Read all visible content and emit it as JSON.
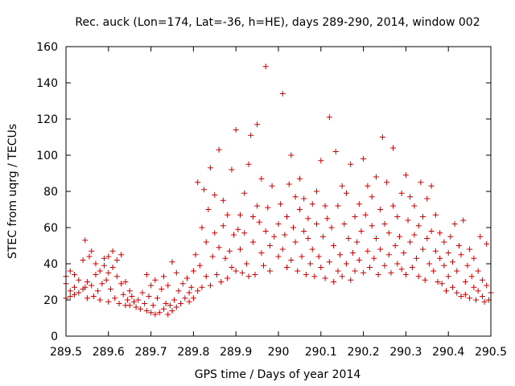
{
  "chart_data": {
    "type": "scatter",
    "title": "Rec. auck (Lon=174, Lat=-36, h=HE), days 289-290, 2014, window 002",
    "xlabel": "GPS time / Days of year 2014",
    "ylabel": "STEC from uqrg / TECUs",
    "xlim": [
      289.5,
      290.5
    ],
    "ylim": [
      0,
      160
    ],
    "xticks": [
      289.5,
      289.6,
      289.7,
      289.8,
      289.9,
      290.0,
      290.1,
      290.2,
      290.3,
      290.4,
      290.5
    ],
    "xtick_labels": [
      "289.5",
      "289.6",
      "289.7",
      "289.8",
      "289.9",
      "290",
      "290.1",
      "290.2",
      "290.3",
      "290.4",
      "290.5"
    ],
    "yticks": [
      0,
      20,
      40,
      60,
      80,
      100,
      120,
      140,
      160
    ],
    "ytick_labels": [
      "0",
      "20",
      "40",
      "60",
      "80",
      "100",
      "120",
      "140",
      "160"
    ],
    "grid": false,
    "legend": "none",
    "marker": "plus",
    "marker_color": "#cc0000",
    "series": [
      {
        "name": "STEC",
        "points": [
          [
            289.5,
            21
          ],
          [
            289.5,
            29
          ],
          [
            289.5,
            33
          ],
          [
            289.51,
            22
          ],
          [
            289.51,
            25
          ],
          [
            289.51,
            36
          ],
          [
            289.52,
            23
          ],
          [
            289.52,
            27
          ],
          [
            289.52,
            34
          ],
          [
            289.53,
            24
          ],
          [
            289.53,
            31
          ],
          [
            289.54,
            26
          ],
          [
            289.54,
            42
          ],
          [
            289.545,
            27
          ],
          [
            289.545,
            53
          ],
          [
            289.55,
            21
          ],
          [
            289.55,
            30
          ],
          [
            289.555,
            44
          ],
          [
            289.56,
            28
          ],
          [
            289.56,
            47
          ],
          [
            289.565,
            22
          ],
          [
            289.57,
            34
          ],
          [
            289.57,
            40
          ],
          [
            289.575,
            25
          ],
          [
            289.58,
            20
          ],
          [
            289.58,
            36
          ],
          [
            289.585,
            29
          ],
          [
            289.59,
            39
          ],
          [
            289.59,
            43
          ],
          [
            289.595,
            31
          ],
          [
            289.6,
            19
          ],
          [
            289.6,
            35
          ],
          [
            289.6,
            44
          ],
          [
            289.605,
            26
          ],
          [
            289.61,
            38
          ],
          [
            289.61,
            47
          ],
          [
            289.615,
            21
          ],
          [
            289.62,
            33
          ],
          [
            289.62,
            42
          ],
          [
            289.625,
            18
          ],
          [
            289.63,
            29
          ],
          [
            289.63,
            45
          ],
          [
            289.635,
            23
          ],
          [
            289.64,
            17
          ],
          [
            289.64,
            30
          ],
          [
            289.645,
            20
          ],
          [
            289.65,
            25
          ],
          [
            289.65,
            17
          ],
          [
            289.655,
            22
          ],
          [
            289.66,
            19
          ],
          [
            289.665,
            16
          ],
          [
            289.67,
            20
          ],
          [
            289.675,
            15
          ],
          [
            289.68,
            24
          ],
          [
            289.685,
            18
          ],
          [
            289.69,
            14
          ],
          [
            289.69,
            34
          ],
          [
            289.695,
            22
          ],
          [
            289.7,
            13
          ],
          [
            289.7,
            28
          ],
          [
            289.705,
            17
          ],
          [
            289.71,
            12
          ],
          [
            289.71,
            31
          ],
          [
            289.715,
            21
          ],
          [
            289.72,
            13
          ],
          [
            289.725,
            26
          ],
          [
            289.73,
            15
          ],
          [
            289.73,
            33
          ],
          [
            289.735,
            18
          ],
          [
            289.74,
            12
          ],
          [
            289.74,
            28
          ],
          [
            289.745,
            17
          ],
          [
            289.75,
            14
          ],
          [
            289.75,
            41
          ],
          [
            289.755,
            20
          ],
          [
            289.76,
            16
          ],
          [
            289.76,
            35
          ],
          [
            289.765,
            25
          ],
          [
            289.77,
            18
          ],
          [
            289.775,
            29
          ],
          [
            289.78,
            21
          ],
          [
            289.785,
            32
          ],
          [
            289.79,
            19
          ],
          [
            289.79,
            24
          ],
          [
            289.795,
            27
          ],
          [
            289.8,
            21
          ],
          [
            289.8,
            36
          ],
          [
            289.805,
            45
          ],
          [
            289.81,
            85
          ],
          [
            289.81,
            25
          ],
          [
            289.815,
            39
          ],
          [
            289.82,
            27
          ],
          [
            289.82,
            60
          ],
          [
            289.825,
            81
          ],
          [
            289.83,
            33
          ],
          [
            289.83,
            52
          ],
          [
            289.835,
            70
          ],
          [
            289.84,
            28
          ],
          [
            289.84,
            93
          ],
          [
            289.845,
            44
          ],
          [
            289.85,
            78
          ],
          [
            289.85,
            57
          ],
          [
            289.855,
            34
          ],
          [
            289.86,
            103
          ],
          [
            289.86,
            49
          ],
          [
            289.865,
            30
          ],
          [
            289.87,
            61
          ],
          [
            289.87,
            75
          ],
          [
            289.875,
            43
          ],
          [
            289.88,
            32
          ],
          [
            289.88,
            67
          ],
          [
            289.885,
            47
          ],
          [
            289.89,
            38
          ],
          [
            289.89,
            92
          ],
          [
            289.895,
            56
          ],
          [
            289.9,
            36
          ],
          [
            289.9,
            114
          ],
          [
            289.905,
            59
          ],
          [
            289.91,
            48
          ],
          [
            289.91,
            67
          ],
          [
            289.915,
            35
          ],
          [
            289.92,
            57
          ],
          [
            289.92,
            79
          ],
          [
            289.925,
            40
          ],
          [
            289.93,
            33
          ],
          [
            289.93,
            95
          ],
          [
            289.935,
            111
          ],
          [
            289.94,
            52
          ],
          [
            289.94,
            66
          ],
          [
            289.945,
            34
          ],
          [
            289.95,
            117
          ],
          [
            289.95,
            72
          ],
          [
            289.955,
            63
          ],
          [
            289.96,
            46
          ],
          [
            289.96,
            87
          ],
          [
            289.965,
            39
          ],
          [
            289.97,
            149
          ],
          [
            289.97,
            58
          ],
          [
            289.975,
            71
          ],
          [
            289.98,
            36
          ],
          [
            289.98,
            50
          ],
          [
            289.985,
            83
          ],
          [
            289.99,
            55
          ],
          [
            290.0,
            44
          ],
          [
            290.0,
            62
          ],
          [
            290.005,
            73
          ],
          [
            290.01,
            48
          ],
          [
            290.01,
            134
          ],
          [
            290.015,
            56
          ],
          [
            290.02,
            38
          ],
          [
            290.02,
            66
          ],
          [
            290.025,
            84
          ],
          [
            290.03,
            42
          ],
          [
            290.03,
            100
          ],
          [
            290.035,
            60
          ],
          [
            290.04,
            52
          ],
          [
            290.04,
            77
          ],
          [
            290.045,
            36
          ],
          [
            290.05,
            70
          ],
          [
            290.05,
            87
          ],
          [
            290.055,
            44
          ],
          [
            290.06,
            58
          ],
          [
            290.06,
            76
          ],
          [
            290.065,
            34
          ],
          [
            290.07,
            65
          ],
          [
            290.07,
            54
          ],
          [
            290.075,
            40
          ],
          [
            290.08,
            73
          ],
          [
            290.08,
            48
          ],
          [
            290.085,
            33
          ],
          [
            290.09,
            80
          ],
          [
            290.09,
            62
          ],
          [
            290.095,
            44
          ],
          [
            290.1,
            97
          ],
          [
            290.1,
            38
          ],
          [
            290.105,
            55
          ],
          [
            290.11,
            72
          ],
          [
            290.11,
            32
          ],
          [
            290.115,
            65
          ],
          [
            290.12,
            121
          ],
          [
            290.12,
            41
          ],
          [
            290.125,
            60
          ],
          [
            290.13,
            30
          ],
          [
            290.13,
            50
          ],
          [
            290.135,
            102
          ],
          [
            290.14,
            36
          ],
          [
            290.14,
            72
          ],
          [
            290.145,
            45
          ],
          [
            290.15,
            83
          ],
          [
            290.15,
            33
          ],
          [
            290.155,
            62
          ],
          [
            290.16,
            40
          ],
          [
            290.16,
            79
          ],
          [
            290.165,
            54
          ],
          [
            290.17,
            31
          ],
          [
            290.17,
            95
          ],
          [
            290.175,
            46
          ],
          [
            290.18,
            66
          ],
          [
            290.18,
            36
          ],
          [
            290.185,
            52
          ],
          [
            290.19,
            73
          ],
          [
            290.19,
            42
          ],
          [
            290.195,
            58
          ],
          [
            290.2,
            98
          ],
          [
            290.2,
            35
          ],
          [
            290.205,
            67
          ],
          [
            290.21,
            47
          ],
          [
            290.21,
            83
          ],
          [
            290.215,
            38
          ],
          [
            290.22,
            61
          ],
          [
            290.22,
            77
          ],
          [
            290.225,
            43
          ],
          [
            290.23,
            88
          ],
          [
            290.23,
            54
          ],
          [
            290.235,
            34
          ],
          [
            290.24,
            70
          ],
          [
            290.24,
            48
          ],
          [
            290.245,
            110
          ],
          [
            290.25,
            39
          ],
          [
            290.25,
            62
          ],
          [
            290.255,
            85
          ],
          [
            290.26,
            45
          ],
          [
            290.26,
            57
          ],
          [
            290.265,
            35
          ],
          [
            290.27,
            72
          ],
          [
            290.27,
            104
          ],
          [
            290.275,
            50
          ],
          [
            290.28,
            40
          ],
          [
            290.28,
            66
          ],
          [
            290.285,
            55
          ],
          [
            290.29,
            37
          ],
          [
            290.29,
            79
          ],
          [
            290.295,
            46
          ],
          [
            290.3,
            89
          ],
          [
            290.3,
            34
          ],
          [
            290.305,
            64
          ],
          [
            290.31,
            52
          ],
          [
            290.31,
            77
          ],
          [
            290.315,
            38
          ],
          [
            290.32,
            56
          ],
          [
            290.32,
            72
          ],
          [
            290.325,
            43
          ],
          [
            290.33,
            33
          ],
          [
            290.33,
            61
          ],
          [
            290.335,
            85
          ],
          [
            290.34,
            48
          ],
          [
            290.34,
            66
          ],
          [
            290.345,
            31
          ],
          [
            290.35,
            54
          ],
          [
            290.35,
            76
          ],
          [
            290.355,
            40
          ],
          [
            290.36,
            58
          ],
          [
            290.36,
            83
          ],
          [
            290.365,
            36
          ],
          [
            290.37,
            47
          ],
          [
            290.37,
            67
          ],
          [
            290.375,
            30
          ],
          [
            290.38,
            43
          ],
          [
            290.38,
            57
          ],
          [
            290.385,
            29
          ],
          [
            290.39,
            52
          ],
          [
            290.39,
            39
          ],
          [
            290.395,
            25
          ],
          [
            290.4,
            46
          ],
          [
            290.4,
            33
          ],
          [
            290.405,
            55
          ],
          [
            290.41,
            27
          ],
          [
            290.41,
            41
          ],
          [
            290.415,
            62
          ],
          [
            290.42,
            24
          ],
          [
            290.42,
            36
          ],
          [
            290.425,
            50
          ],
          [
            290.43,
            22
          ],
          [
            290.43,
            45
          ],
          [
            290.435,
            64
          ],
          [
            290.44,
            30
          ],
          [
            290.44,
            23
          ],
          [
            290.445,
            39
          ],
          [
            290.45,
            48
          ],
          [
            290.45,
            21
          ],
          [
            290.455,
            33
          ],
          [
            290.46,
            27
          ],
          [
            290.46,
            43
          ],
          [
            290.465,
            20
          ],
          [
            290.47,
            36
          ],
          [
            290.47,
            25
          ],
          [
            290.475,
            55
          ],
          [
            290.48,
            22
          ],
          [
            290.48,
            31
          ],
          [
            290.485,
            19
          ],
          [
            290.49,
            51
          ],
          [
            290.49,
            28
          ],
          [
            290.495,
            20
          ],
          [
            290.5,
            24
          ]
        ]
      }
    ]
  }
}
